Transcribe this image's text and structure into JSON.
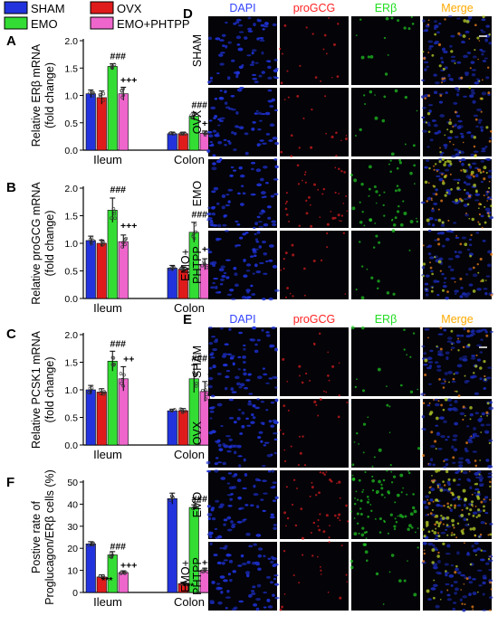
{
  "legend": {
    "items": [
      {
        "label": "SHAM",
        "color": "#2233dd"
      },
      {
        "label": "OVX",
        "color": "#e01b1b"
      },
      {
        "label": "EMO",
        "color": "#33dd33"
      },
      {
        "label": "EMO+PHTPP",
        "color": "#ee66cc"
      }
    ]
  },
  "chart_data": [
    {
      "panel": "A",
      "type": "bar",
      "ylabel": [
        "Relative ERβ mRNA",
        "(fold change)"
      ],
      "categories": [
        "Ileum",
        "Colon"
      ],
      "ylim": [
        0,
        2.0
      ],
      "yticks": [
        "0.0",
        "0.5",
        "1.0",
        "1.5",
        "2.0"
      ],
      "series": [
        {
          "name": "SHAM",
          "values": [
            1.03,
            0.3
          ],
          "errors": [
            0.07,
            0.03
          ]
        },
        {
          "name": "OVX",
          "values": [
            0.96,
            0.3
          ],
          "errors": [
            0.12,
            0.03
          ]
        },
        {
          "name": "EMO",
          "values": [
            1.53,
            0.62
          ],
          "errors": [
            0.05,
            0.07
          ]
        },
        {
          "name": "EMO+PHTPP",
          "values": [
            1.03,
            0.31
          ],
          "errors": [
            0.12,
            0.04
          ]
        }
      ],
      "annotations": [
        {
          "text": "###",
          "cat": 0,
          "series": 2,
          "y": 1.66
        },
        {
          "text": "+++",
          "cat": 0,
          "series": 3,
          "y": 1.22
        },
        {
          "text": "###",
          "cat": 1,
          "series": 2,
          "y": 0.77
        },
        {
          "text": "+++",
          "cat": 1,
          "series": 3,
          "y": 0.43
        }
      ]
    },
    {
      "panel": "B",
      "type": "bar",
      "ylabel": [
        "Relative proGCG mRNA",
        "(fold change)"
      ],
      "categories": [
        "Ileum",
        "Colon"
      ],
      "ylim": [
        0,
        2.0
      ],
      "yticks": [
        "0.0",
        "0.5",
        "1.0",
        "1.5",
        "2.0"
      ],
      "series": [
        {
          "name": "SHAM",
          "values": [
            1.05,
            0.55
          ],
          "errors": [
            0.08,
            0.05
          ]
        },
        {
          "name": "OVX",
          "values": [
            1.0,
            0.53
          ],
          "errors": [
            0.06,
            0.04
          ]
        },
        {
          "name": "EMO",
          "values": [
            1.6,
            1.2
          ],
          "errors": [
            0.22,
            0.18
          ]
        },
        {
          "name": "EMO+PHTPP",
          "values": [
            1.03,
            0.62
          ],
          "errors": [
            0.12,
            0.1
          ]
        }
      ],
      "annotations": [
        {
          "text": "###",
          "cat": 0,
          "series": 2,
          "y": 1.92
        },
        {
          "text": "+++",
          "cat": 0,
          "series": 3,
          "y": 1.26
        },
        {
          "text": "###",
          "cat": 1,
          "series": 2,
          "y": 1.47
        },
        {
          "text": "+++",
          "cat": 1,
          "series": 3,
          "y": 0.84
        }
      ]
    },
    {
      "panel": "C",
      "type": "bar",
      "ylabel": [
        "Relative PCSK1 mRNA",
        "(fold change)"
      ],
      "categories": [
        "Ileum",
        "Colon"
      ],
      "ylim": [
        0,
        2.0
      ],
      "yticks": [
        "0.0",
        "0.5",
        "1.0",
        "1.5",
        "2.0"
      ],
      "series": [
        {
          "name": "SHAM",
          "values": [
            1.0,
            0.62
          ],
          "errors": [
            0.08,
            0.03
          ]
        },
        {
          "name": "OVX",
          "values": [
            0.96,
            0.62
          ],
          "errors": [
            0.06,
            0.04
          ]
        },
        {
          "name": "EMO",
          "values": [
            1.52,
            1.2
          ],
          "errors": [
            0.18,
            0.25
          ]
        },
        {
          "name": "EMO+PHTPP",
          "values": [
            1.2,
            0.97
          ],
          "errors": [
            0.22,
            0.18
          ]
        }
      ],
      "annotations": [
        {
          "text": "###",
          "cat": 0,
          "series": 2,
          "y": 1.78
        },
        {
          "text": "++",
          "cat": 0,
          "series": 3,
          "y": 1.5
        },
        {
          "text": "###",
          "cat": 1,
          "series": 2,
          "y": 1.52
        },
        {
          "text": "+",
          "cat": 1,
          "series": 3,
          "y": 1.22
        }
      ]
    },
    {
      "panel": "F",
      "type": "bar",
      "ylabel": [
        "Postive rate of",
        "Proglucagon/ERβ cells (%)"
      ],
      "categories": [
        "Ileum",
        "Colon"
      ],
      "ylim": [
        0,
        50
      ],
      "yticks": [
        "0",
        "10",
        "20",
        "30",
        "40",
        "50"
      ],
      "series": [
        {
          "name": "SHAM",
          "values": [
            22.0,
            42.5
          ],
          "errors": [
            1.0,
            2.5
          ]
        },
        {
          "name": "OVX",
          "values": [
            7.0,
            4.0
          ],
          "errors": [
            1.0,
            0.6
          ]
        },
        {
          "name": "EMO",
          "values": [
            17.0,
            38.5
          ],
          "errors": [
            1.5,
            1.2
          ]
        },
        {
          "name": "EMO+PHTPP",
          "values": [
            9.0,
            10.0
          ],
          "errors": [
            0.8,
            1.0
          ]
        }
      ],
      "annotations": [
        {
          "text": "***",
          "cat": 0,
          "series": 1,
          "y": 4.2
        },
        {
          "text": "###",
          "cat": 0,
          "series": 2,
          "y": 19.5
        },
        {
          "text": "+++",
          "cat": 0,
          "series": 3,
          "y": 10.8
        },
        {
          "text": "###",
          "cat": 1,
          "series": 2,
          "y": 41.0
        },
        {
          "text": "***",
          "cat": 1,
          "series": 1,
          "y": 1.5
        },
        {
          "text": "+++",
          "cat": 1,
          "series": 3,
          "y": 12.0
        }
      ]
    }
  ],
  "micrographs": [
    {
      "panel": "D",
      "columns": [
        {
          "label": "DAPI",
          "color": "#3344ff"
        },
        {
          "label": "proGCG",
          "color": "#ff2222"
        },
        {
          "label": "ERβ",
          "color": "#22dd22"
        },
        {
          "label": "Merge",
          "color": "#ffaa00"
        }
      ],
      "rows": [
        [
          "SHAM"
        ],
        [
          "OVX"
        ],
        [
          "EMO"
        ],
        [
          "EMO+",
          "PHTPP"
        ]
      ]
    },
    {
      "panel": "E",
      "columns": [
        {
          "label": "DAPI",
          "color": "#3344ff"
        },
        {
          "label": "proGCG",
          "color": "#ff2222"
        },
        {
          "label": "ERβ",
          "color": "#22dd22"
        },
        {
          "label": "Merge",
          "color": "#ffaa00"
        }
      ],
      "rows": [
        [
          "SHAM"
        ],
        [
          "OVX"
        ],
        [
          "EMO"
        ],
        [
          "EMO+",
          "PHTPP"
        ]
      ]
    }
  ],
  "panel_letters": [
    "A",
    "B",
    "C",
    "D",
    "E",
    "F"
  ]
}
